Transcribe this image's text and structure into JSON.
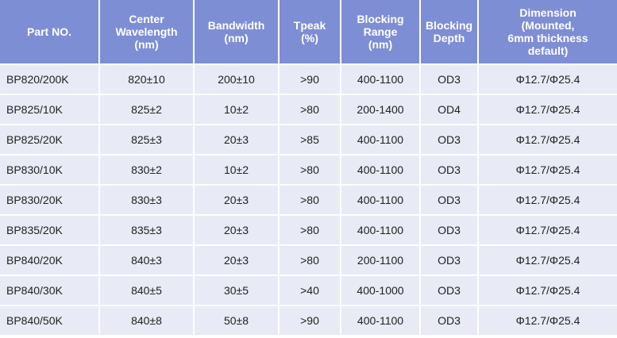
{
  "table": {
    "header": [
      "Part NO.",
      "Center\nWavelength\n(nm)",
      "Bandwidth\n(nm)",
      "Tpeak\n(%)",
      "Blocking\nRange\n(nm)",
      "Blocking\nDepth",
      "Dimension\n(Mounted,\n6mm thickness\ndefault)"
    ],
    "rows": [
      [
        "BP820/200K",
        "820±10",
        "200±10",
        ">90",
        "400-1100",
        "OD3",
        "Φ12.7/Φ25.4"
      ],
      [
        "BP825/10K",
        "825±2",
        "10±2",
        ">80",
        "200-1400",
        "OD4",
        "Φ12.7/Φ25.4"
      ],
      [
        "BP825/20K",
        "825±3",
        "20±3",
        ">85",
        "400-1100",
        "OD3",
        "Φ12.7/Φ25.4"
      ],
      [
        "BP830/10K",
        "830±2",
        "10±2",
        ">80",
        "400-1100",
        "OD3",
        "Φ12.7/Φ25.4"
      ],
      [
        "BP830/20K",
        "830±3",
        "20±3",
        ">80",
        "400-1100",
        "OD3",
        "Φ12.7/Φ25.4"
      ],
      [
        "BP835/20K",
        "835±3",
        "20±3",
        ">80",
        "400-1100",
        "OD3",
        "Φ12.7/Φ25.4"
      ],
      [
        "BP840/20K",
        "840±3",
        "20±3",
        ">80",
        "200-1100",
        "OD3",
        "Φ12.7/Φ25.4"
      ],
      [
        "BP840/30K",
        "840±5",
        "30±5",
        ">40",
        "400-1000",
        "OD3",
        "Φ12.7/Φ25.4"
      ],
      [
        "BP840/50K",
        "840±8",
        "50±8",
        ">90",
        "400-1100",
        "OD3",
        "Φ12.7/Φ25.4"
      ]
    ]
  }
}
